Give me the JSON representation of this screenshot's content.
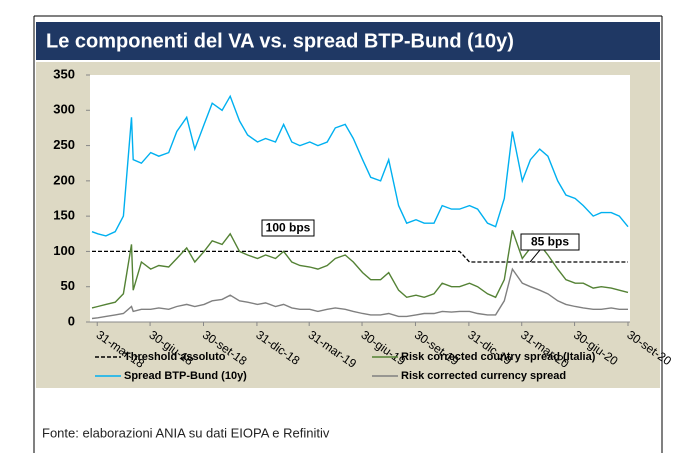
{
  "chart_data": {
    "type": "line",
    "title": "Le componenti del VA vs. spread BTP-Bund (10y)",
    "source": "Fonte: elaborazioni ANIA su dati EIOPA e Refinitiv",
    "x": [
      "2018-03-22",
      "2018-04-01",
      "2018-04-15",
      "2018-05-01",
      "2018-05-15",
      "2018-05-29",
      "2018-06-01",
      "2018-06-15",
      "2018-07-01",
      "2018-07-15",
      "2018-08-01",
      "2018-08-15",
      "2018-09-01",
      "2018-09-15",
      "2018-10-01",
      "2018-10-15",
      "2018-11-01",
      "2018-11-15",
      "2018-12-01",
      "2018-12-15",
      "2019-01-01",
      "2019-01-15",
      "2019-02-01",
      "2019-02-15",
      "2019-03-01",
      "2019-03-15",
      "2019-04-01",
      "2019-04-15",
      "2019-05-01",
      "2019-05-15",
      "2019-06-01",
      "2019-06-15",
      "2019-07-01",
      "2019-07-15",
      "2019-08-01",
      "2019-08-15",
      "2019-09-01",
      "2019-09-15",
      "2019-10-01",
      "2019-10-15",
      "2019-11-01",
      "2019-11-15",
      "2019-12-01",
      "2019-12-15",
      "2020-01-01",
      "2020-01-15",
      "2020-02-01",
      "2020-02-15",
      "2020-03-01",
      "2020-03-15",
      "2020-04-01",
      "2020-04-15",
      "2020-05-01",
      "2020-05-15",
      "2020-06-01",
      "2020-06-15",
      "2020-07-01",
      "2020-07-15",
      "2020-08-01",
      "2020-08-15",
      "2020-09-01",
      "2020-09-15",
      "2020-09-30"
    ],
    "series": [
      {
        "name": "Threshold assoluto",
        "color": "#000000",
        "dash": true,
        "values": [
          100,
          100,
          100,
          100,
          100,
          100,
          100,
          100,
          100,
          100,
          100,
          100,
          100,
          100,
          100,
          100,
          100,
          100,
          100,
          100,
          100,
          100,
          100,
          100,
          100,
          100,
          100,
          100,
          100,
          100,
          100,
          100,
          100,
          100,
          100,
          100,
          100,
          100,
          100,
          100,
          100,
          100,
          100,
          100,
          85,
          85,
          85,
          85,
          85,
          85,
          85,
          85,
          85,
          85,
          85,
          85,
          85,
          85,
          85,
          85,
          85,
          85,
          85
        ]
      },
      {
        "name": "Spread BTP-Bund (10y)",
        "color": "#00b0f0",
        "values": [
          128,
          125,
          122,
          128,
          150,
          290,
          230,
          225,
          240,
          235,
          240,
          270,
          290,
          245,
          280,
          310,
          300,
          320,
          285,
          265,
          255,
          260,
          255,
          280,
          255,
          250,
          255,
          250,
          255,
          275,
          280,
          260,
          230,
          205,
          200,
          230,
          165,
          140,
          145,
          140,
          140,
          165,
          160,
          160,
          165,
          160,
          140,
          135,
          175,
          270,
          200,
          230,
          245,
          235,
          200,
          180,
          175,
          165,
          150,
          155,
          155,
          150,
          135
        ]
      },
      {
        "name": "Risk corrected country spread (Italia)",
        "color": "#548235",
        "values": [
          20,
          22,
          25,
          28,
          40,
          110,
          45,
          85,
          75,
          80,
          78,
          90,
          105,
          85,
          100,
          115,
          110,
          125,
          100,
          95,
          90,
          95,
          90,
          100,
          85,
          80,
          78,
          75,
          80,
          90,
          95,
          85,
          70,
          60,
          60,
          70,
          45,
          35,
          38,
          35,
          40,
          55,
          50,
          50,
          55,
          50,
          40,
          35,
          60,
          130,
          90,
          105,
          110,
          95,
          75,
          60,
          55,
          55,
          48,
          50,
          48,
          45,
          42
        ]
      },
      {
        "name": "Risk corrected currency spread",
        "color": "#808080",
        "values": [
          5,
          6,
          8,
          10,
          12,
          22,
          15,
          18,
          18,
          20,
          18,
          22,
          25,
          22,
          25,
          30,
          32,
          38,
          30,
          28,
          25,
          27,
          22,
          25,
          20,
          18,
          18,
          15,
          18,
          20,
          18,
          15,
          12,
          10,
          10,
          12,
          8,
          8,
          10,
          12,
          12,
          15,
          14,
          15,
          15,
          12,
          10,
          10,
          30,
          75,
          55,
          50,
          45,
          40,
          30,
          25,
          22,
          20,
          18,
          18,
          20,
          18,
          18
        ]
      }
    ],
    "annotations": [
      {
        "text": "100 bps"
      },
      {
        "text": "85 bps"
      }
    ],
    "xlim": [
      "2018-03-22",
      "2020-09-30"
    ],
    "xticks": [
      {
        "value": "2018-03-31",
        "label": "31-mar-18"
      },
      {
        "value": "2018-06-30",
        "label": "30-giu-18"
      },
      {
        "value": "2018-09-30",
        "label": "30-set-18"
      },
      {
        "value": "2018-12-31",
        "label": "31-dic-18"
      },
      {
        "value": "2019-03-31",
        "label": "31-mar-19"
      },
      {
        "value": "2019-06-30",
        "label": "30-giu-19"
      },
      {
        "value": "2019-09-30",
        "label": "30-set-19"
      },
      {
        "value": "2019-12-31",
        "label": "31-dic-19"
      },
      {
        "value": "2020-03-31",
        "label": "31-mar-20"
      },
      {
        "value": "2020-06-30",
        "label": "30-giu-20"
      },
      {
        "value": "2020-09-30",
        "label": "30-set-20"
      }
    ],
    "ylim": [
      0,
      350
    ],
    "yticks": [
      0,
      50,
      100,
      150,
      200,
      250,
      300,
      350
    ],
    "grid": false
  }
}
